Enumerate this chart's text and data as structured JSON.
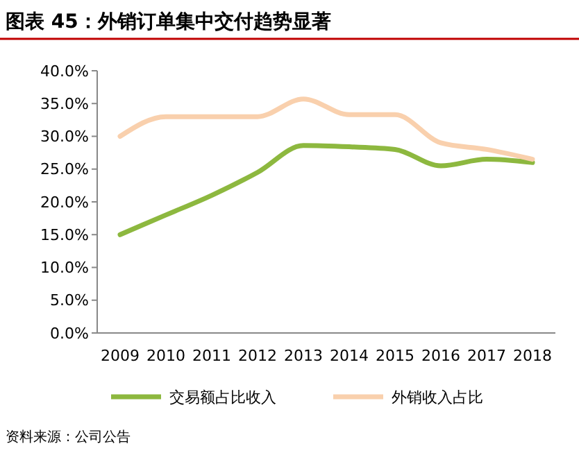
{
  "chart_data": {
    "type": "line",
    "title": "图表 45：外销订单集中交付趋势显著",
    "categories": [
      "2009",
      "2010",
      "2011",
      "2012",
      "2013",
      "2014",
      "2015",
      "2016",
      "2017",
      "2018"
    ],
    "series": [
      {
        "name": "交易额占比收入",
        "color": "#8db83f",
        "values": [
          15.0,
          18.0,
          21.0,
          24.5,
          28.6,
          28.4,
          28.0,
          25.5,
          26.5,
          26.0
        ]
      },
      {
        "name": "外销收入占比",
        "color": "#f9d0ad",
        "values": [
          30.0,
          33.0,
          33.0,
          33.0,
          35.7,
          33.3,
          33.3,
          29.0,
          28.0,
          26.5
        ]
      }
    ],
    "ylim": [
      0,
      40
    ],
    "yticks": [
      {
        "value": 0,
        "label": "0.0%"
      },
      {
        "value": 5,
        "label": "5.0%"
      },
      {
        "value": 10,
        "label": "10.0%"
      },
      {
        "value": 15,
        "label": "15.0%"
      },
      {
        "value": 20,
        "label": "20.0%"
      },
      {
        "value": 25,
        "label": "25.0%"
      },
      {
        "value": 30,
        "label": "30.0%"
      },
      {
        "value": 35,
        "label": "35.0%"
      },
      {
        "value": 40,
        "label": "40.0%"
      }
    ],
    "grid": false,
    "legend": "bottom",
    "marker": "none",
    "line_style": "solid",
    "annotations": [
      "资料来源：公司公告"
    ]
  }
}
